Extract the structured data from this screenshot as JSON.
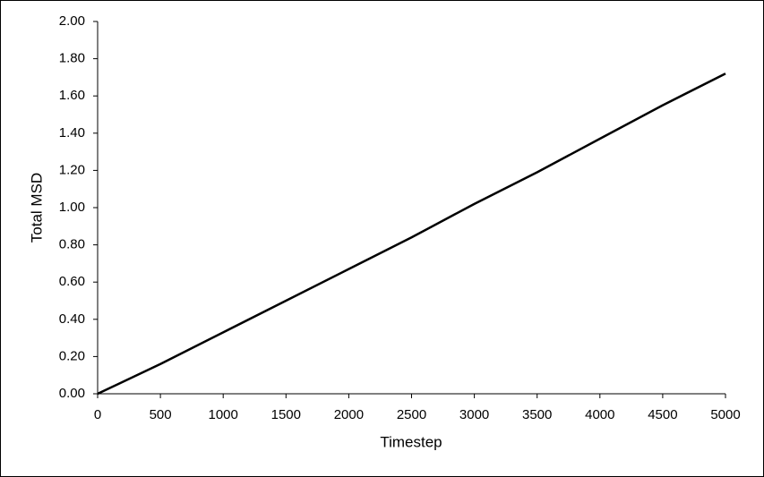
{
  "chart_data": {
    "type": "line",
    "x_label": "Timestep",
    "y_label": "Total MSD",
    "x": [
      0,
      500,
      1000,
      1500,
      2000,
      2500,
      3000,
      3500,
      4000,
      4500,
      5000
    ],
    "series": [
      {
        "name": "Total MSD",
        "color": "#000000",
        "values": [
          0,
          0.16,
          0.33,
          0.5,
          0.67,
          0.84,
          1.02,
          1.19,
          1.37,
          1.55,
          1.72
        ]
      }
    ],
    "xlim": [
      0,
      5000
    ],
    "xticks": [
      0,
      500,
      1000,
      1500,
      2000,
      2500,
      3000,
      3500,
      4000,
      4500,
      5000
    ],
    "ylim": [
      0,
      2
    ],
    "yticks": [
      {
        "value": 0,
        "label": "0.00"
      },
      {
        "value": 0.2,
        "label": "0.20"
      },
      {
        "value": 0.4,
        "label": "0.40"
      },
      {
        "value": 0.6,
        "label": "0.60"
      },
      {
        "value": 0.8,
        "label": "0.80"
      },
      {
        "value": 1,
        "label": "1.00"
      },
      {
        "value": 1.2,
        "label": "1.20"
      },
      {
        "value": 1.4,
        "label": "1.40"
      },
      {
        "value": 1.6,
        "label": "1.60"
      },
      {
        "value": 1.8,
        "label": "1.80"
      },
      {
        "value": 2,
        "label": "2.00"
      }
    ],
    "grid": false
  }
}
